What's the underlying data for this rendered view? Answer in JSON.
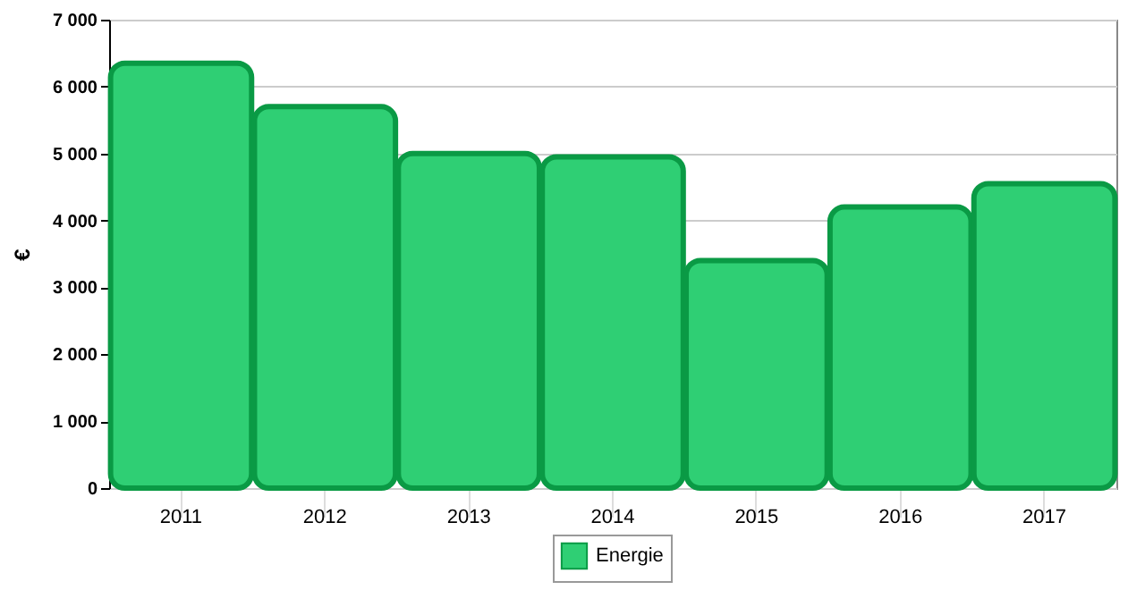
{
  "chart_data": {
    "type": "bar",
    "ylabel": "€",
    "categories": [
      "2011",
      "2012",
      "2013",
      "2014",
      "2015",
      "2016",
      "2017"
    ],
    "series": [
      {
        "name": "Energie",
        "color": "#2fcf74",
        "values": [
          6350,
          5700,
          5000,
          4950,
          3400,
          4200,
          4550
        ]
      }
    ],
    "ylim": [
      0,
      7000
    ],
    "yticks": [
      {
        "value": 0,
        "label": "0"
      },
      {
        "value": 1000,
        "label": "1 000"
      },
      {
        "value": 2000,
        "label": "2 000"
      },
      {
        "value": 3000,
        "label": "3 000"
      },
      {
        "value": 4000,
        "label": "4 000"
      },
      {
        "value": 5000,
        "label": "5 000"
      },
      {
        "value": 6000,
        "label": "6 000"
      },
      {
        "value": 7000,
        "label": "7 000"
      }
    ],
    "grid": "y",
    "legend": "bottom"
  }
}
